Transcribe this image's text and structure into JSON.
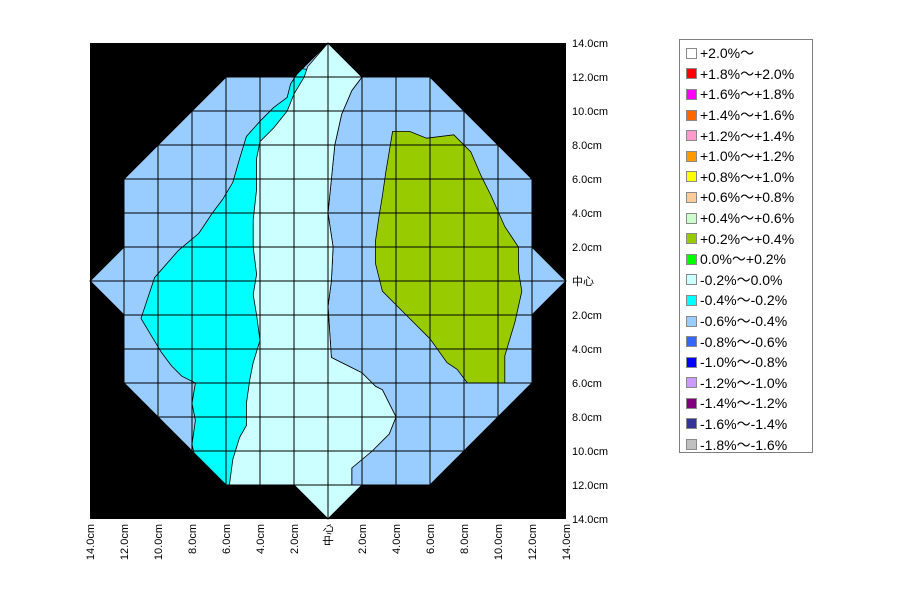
{
  "chart_data": {
    "type": "heatmap",
    "title": "",
    "xlabel": "",
    "ylabel": "",
    "x_ticks": [
      "14.0cm",
      "12.0cm",
      "10.0cm",
      "8.0cm",
      "6.0cm",
      "4.0cm",
      "2.0cm",
      "中心",
      "2.0cm",
      "4.0cm",
      "6.0cm",
      "8.0cm",
      "10.0cm",
      "12.0cm",
      "14.0cm"
    ],
    "y_ticks": [
      "14.0cm",
      "12.0cm",
      "10.0cm",
      "8.0cm",
      "6.0cm",
      "4.0cm",
      "2.0cm",
      "中心",
      "2.0cm",
      "4.0cm",
      "6.0cm",
      "8.0cm",
      "10.0cm",
      "12.0cm",
      "14.0cm"
    ],
    "x_range_cm": [
      -14,
      14
    ],
    "y_range_cm": [
      -14,
      14
    ],
    "grid": true,
    "grid_step_cm": 2,
    "background_color": "#000000",
    "legend_position": "right",
    "legend": [
      {
        "label": "+2.0%～",
        "color": "#ffffff"
      },
      {
        "label": "+1.8%～+2.0%",
        "color": "#ff0000"
      },
      {
        "label": "+1.6%～+1.8%",
        "color": "#ff00ff"
      },
      {
        "label": "+1.4%～+1.6%",
        "color": "#ff6600"
      },
      {
        "label": "+1.2%～+1.4%",
        "color": "#ff99cc"
      },
      {
        "label": "+1.0%～+1.2%",
        "color": "#ff9900"
      },
      {
        "label": "+0.8%～+1.0%",
        "color": "#ffff00"
      },
      {
        "label": "+0.6%～+0.8%",
        "color": "#ffcc99"
      },
      {
        "label": "+0.4%～+0.6%",
        "color": "#ccffcc"
      },
      {
        "label": "+0.2%～+0.4%",
        "color": "#99cc00"
      },
      {
        "label": "0.0%～+0.2%",
        "color": "#00ff00"
      },
      {
        "label": "-0.2%～0.0%",
        "color": "#ccffff"
      },
      {
        "label": "-0.4%～-0.2%",
        "color": "#00ffff"
      },
      {
        "label": "-0.6%～-0.4%",
        "color": "#99ccff"
      },
      {
        "label": "-0.8%～-0.6%",
        "color": "#3366ff"
      },
      {
        "label": "-1.0%～-0.8%",
        "color": "#0000ff"
      },
      {
        "label": "-1.2%～-1.0%",
        "color": "#cc99ff"
      },
      {
        "label": "-1.4%～-1.2%",
        "color": "#800080"
      },
      {
        "label": "-1.6%～-1.4%",
        "color": "#333399"
      },
      {
        "label": "-1.8%～-1.6%",
        "color": "#c0c0c0"
      }
    ],
    "outline_cm": [
      [
        0,
        14
      ],
      [
        2,
        12
      ],
      [
        6,
        12
      ],
      [
        8,
        10
      ],
      [
        10,
        8
      ],
      [
        12,
        6
      ],
      [
        12,
        2
      ],
      [
        14,
        0
      ],
      [
        12,
        -2
      ],
      [
        12,
        -6
      ],
      [
        10,
        -8
      ],
      [
        8,
        -10
      ],
      [
        6,
        -12
      ],
      [
        2,
        -12
      ],
      [
        0,
        -14
      ],
      [
        -2,
        -12
      ],
      [
        -6,
        -12
      ],
      [
        -8,
        -10
      ],
      [
        -10,
        -8
      ],
      [
        -12,
        -6
      ],
      [
        -12,
        -2
      ],
      [
        -14,
        0
      ],
      [
        -12,
        2
      ],
      [
        -12,
        6
      ],
      [
        -10,
        8
      ],
      [
        -8,
        10
      ],
      [
        -6,
        12
      ],
      [
        -2,
        12
      ]
    ],
    "regions": [
      {
        "range": "-0.6%～-0.4%",
        "color": "#99ccff",
        "fill": "outline"
      },
      {
        "range": "-0.4%～-0.2%",
        "color": "#00ffff",
        "boundary_cm": [
          [
            -1.6,
            12.5
          ],
          [
            -2.2,
            11.6
          ],
          [
            -2.4,
            10.8
          ],
          [
            -3.2,
            10.2
          ],
          [
            -4.0,
            9.4
          ],
          [
            -4.8,
            8.5
          ],
          [
            -5.2,
            7.2
          ],
          [
            -5.6,
            5.8
          ],
          [
            -6.2,
            4.8
          ],
          [
            -6.8,
            4.0
          ],
          [
            -7.6,
            2.8
          ],
          [
            -8.8,
            1.8
          ],
          [
            -10.2,
            0.2
          ],
          [
            -10.6,
            -1.0
          ],
          [
            -11.0,
            -2.2
          ],
          [
            -10.4,
            -3.2
          ],
          [
            -9.8,
            -4.2
          ],
          [
            -9.2,
            -5.0
          ],
          [
            -8.6,
            -5.6
          ],
          [
            -7.8,
            -6.0
          ],
          [
            -8.0,
            -7.2
          ],
          [
            -7.8,
            -8.2
          ],
          [
            -8.0,
            -9.6
          ],
          [
            -7.8,
            -10.5
          ],
          [
            -7.4,
            -11.0
          ],
          [
            -6.2,
            -12.0
          ],
          [
            1.4,
            -12.0
          ],
          [
            1.4,
            -11.0
          ],
          [
            2.6,
            -10.0
          ],
          [
            3.6,
            -9.0
          ],
          [
            4.0,
            -8.0
          ],
          [
            3.6,
            -7.2
          ],
          [
            3.2,
            -6.4
          ],
          [
            2.8,
            -6.2
          ],
          [
            2.0,
            -5.4
          ],
          [
            1.2,
            -5.0
          ],
          [
            0.2,
            -4.5
          ],
          [
            0.1,
            -3.0
          ],
          [
            0.0,
            -1.5
          ],
          [
            0.2,
            0.0
          ],
          [
            0.3,
            2.0
          ],
          [
            0.0,
            4.0
          ],
          [
            0.2,
            6.0
          ],
          [
            0.4,
            8.0
          ],
          [
            0.8,
            9.8
          ],
          [
            1.4,
            11.2
          ],
          [
            2.0,
            12.0
          ]
        ]
      },
      {
        "range": "-0.2%～0.0%",
        "color": "#ccffff",
        "boundary_cm": [
          [
            0,
            14
          ],
          [
            2,
            12
          ],
          [
            1.4,
            11.2
          ],
          [
            0.8,
            9.8
          ],
          [
            0.4,
            8.0
          ],
          [
            0.2,
            6.0
          ],
          [
            0.0,
            4.0
          ],
          [
            0.3,
            2.0
          ],
          [
            0.2,
            0.0
          ],
          [
            0.0,
            -1.5
          ],
          [
            0.1,
            -3.0
          ],
          [
            0.2,
            -4.5
          ],
          [
            1.2,
            -5.0
          ],
          [
            2.0,
            -5.4
          ],
          [
            2.8,
            -6.2
          ],
          [
            3.2,
            -6.4
          ],
          [
            3.6,
            -7.2
          ],
          [
            4.0,
            -8.0
          ],
          [
            3.6,
            -9.0
          ],
          [
            2.6,
            -10.0
          ],
          [
            1.4,
            -11.0
          ],
          [
            1.4,
            -12.0
          ],
          [
            2,
            -12
          ],
          [
            0,
            -14
          ],
          [
            -2,
            -12
          ],
          [
            -5.8,
            -12.0
          ],
          [
            -5.6,
            -10.5
          ],
          [
            -5.2,
            -9.2
          ],
          [
            -4.8,
            -8.5
          ],
          [
            -4.8,
            -7.2
          ],
          [
            -4.6,
            -5.8
          ],
          [
            -4.4,
            -4.8
          ],
          [
            -4.0,
            -3.5
          ],
          [
            -4.2,
            -2.0
          ],
          [
            -4.4,
            -0.8
          ],
          [
            -4.2,
            0.4
          ],
          [
            -4.4,
            2.0
          ],
          [
            -4.4,
            3.6
          ],
          [
            -4.2,
            5.4
          ],
          [
            -4.2,
            7.2
          ],
          [
            -4.0,
            8.2
          ],
          [
            -3.2,
            9.0
          ],
          [
            -2.4,
            10.0
          ],
          [
            -2.0,
            11.0
          ],
          [
            -1.4,
            12.0
          ],
          [
            -1.2,
            12.6
          ]
        ]
      },
      {
        "range": "+0.2%～+0.4%",
        "color": "#99cc00",
        "boundary_cm": [
          [
            3.8,
            8.8
          ],
          [
            4.8,
            8.8
          ],
          [
            5.8,
            8.4
          ],
          [
            7.4,
            8.6
          ],
          [
            8.4,
            7.6
          ],
          [
            9.0,
            6.2
          ],
          [
            9.6,
            5.0
          ],
          [
            10.4,
            3.2
          ],
          [
            11.2,
            2.0
          ],
          [
            11.2,
            0.6
          ],
          [
            11.4,
            -0.6
          ],
          [
            11.0,
            -2.4
          ],
          [
            10.4,
            -4.4
          ],
          [
            10.4,
            -6.0
          ],
          [
            8.2,
            -6.0
          ],
          [
            7.6,
            -5.2
          ],
          [
            7.0,
            -4.8
          ],
          [
            6.0,
            -3.4
          ],
          [
            4.6,
            -2.0
          ],
          [
            3.2,
            -0.6
          ],
          [
            2.8,
            1.0
          ],
          [
            2.8,
            2.4
          ],
          [
            3.0,
            3.8
          ],
          [
            3.2,
            5.0
          ],
          [
            3.4,
            6.4
          ],
          [
            3.6,
            7.6
          ]
        ]
      }
    ]
  }
}
